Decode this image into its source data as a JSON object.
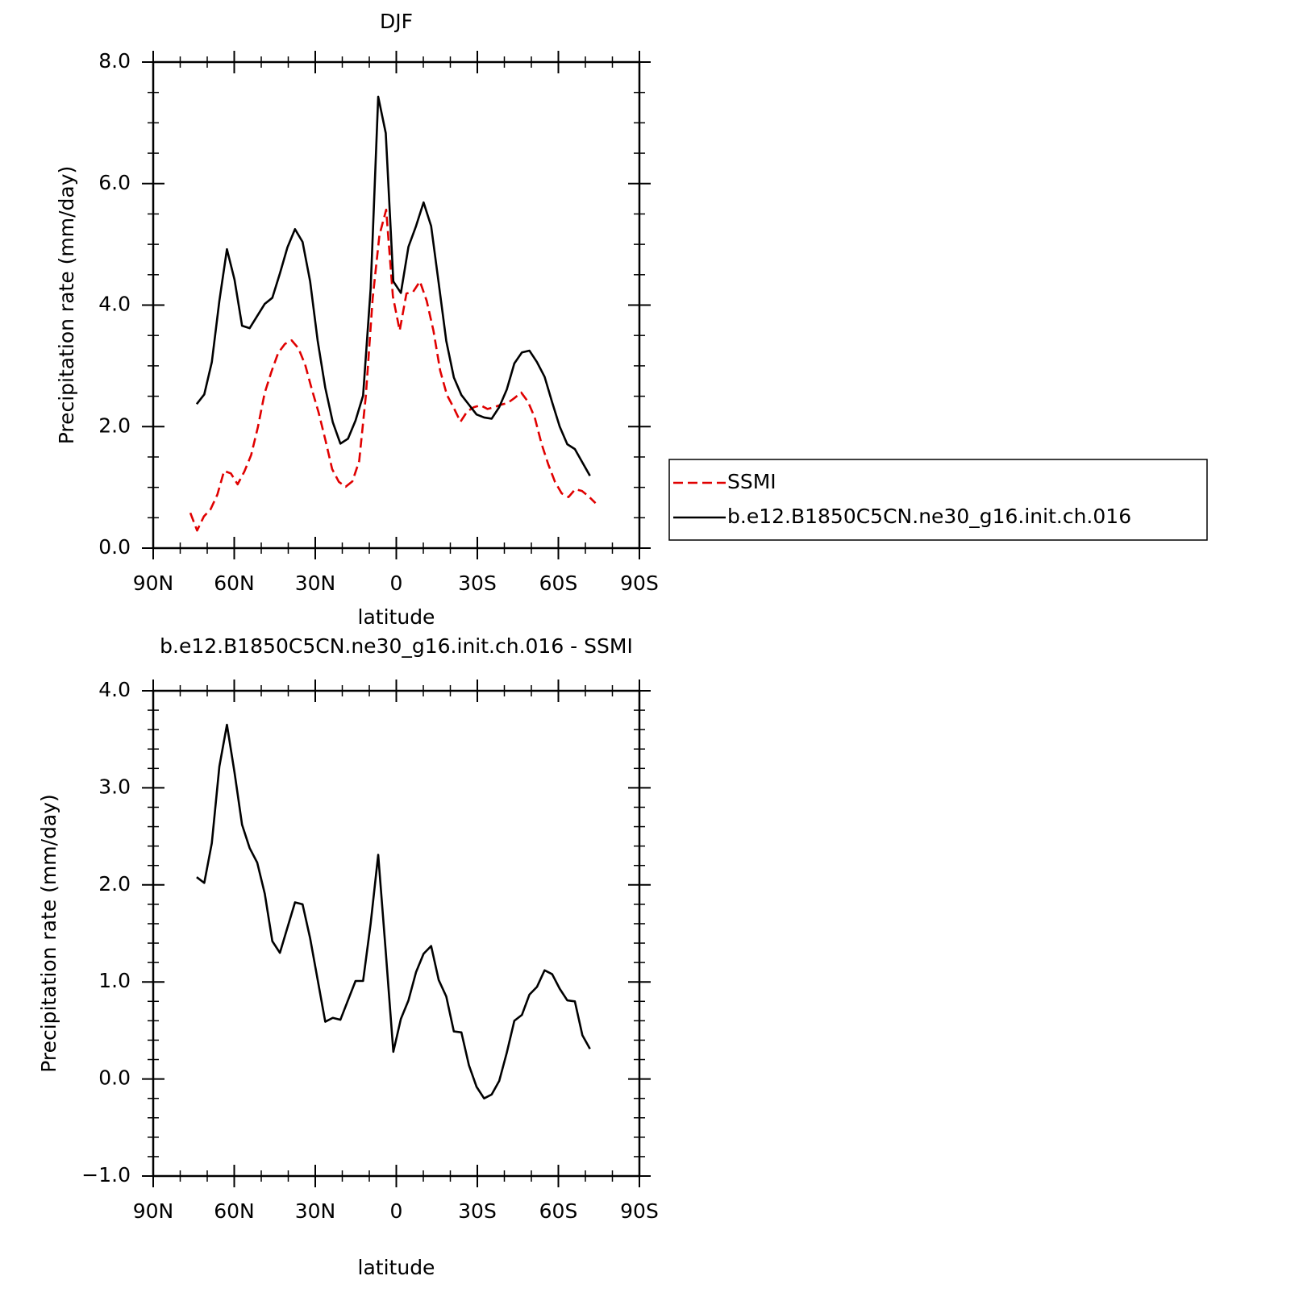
{
  "chart_data": [
    {
      "type": "line",
      "title": "DJF",
      "xlabel": "latitude",
      "ylabel": "Precipitation rate (mm/day)",
      "xlim": [
        90,
        -90
      ],
      "xticks": [
        {
          "value": 90,
          "label": "90N"
        },
        {
          "value": 60,
          "label": "60N"
        },
        {
          "value": 30,
          "label": "30N"
        },
        0,
        {
          "value": -30,
          "label": "30S"
        },
        {
          "value": -60,
          "label": "60S"
        },
        {
          "value": -90,
          "label": "90S"
        }
      ],
      "xminorticks": [
        80,
        70,
        50,
        40,
        20,
        10,
        -10,
        -20,
        -40,
        -50,
        -70,
        -80
      ],
      "ylim": [
        0,
        8
      ],
      "yticks": [
        {
          "value": 0,
          "label": "0.0"
        },
        {
          "value": 2,
          "label": "2.0"
        },
        {
          "value": 4,
          "label": "4.0"
        },
        {
          "value": 6,
          "label": "6.0"
        },
        {
          "value": 8,
          "label": "8.0"
        }
      ],
      "yminorticks": [
        0.5,
        1,
        1.5,
        2.5,
        3,
        3.5,
        4.5,
        5,
        5.5,
        6.5,
        7,
        7.5
      ],
      "legend": "right",
      "series": [
        {
          "name": "SSMI",
          "color": "#e00000",
          "line_style": "dashed",
          "x": [
            76.25,
            73.75,
            71.25,
            68.75,
            66.25,
            63.75,
            61.25,
            58.75,
            56.25,
            53.75,
            51.25,
            48.75,
            46.25,
            43.75,
            41.25,
            38.75,
            36.25,
            33.75,
            31.25,
            28.75,
            26.25,
            23.75,
            21.25,
            18.75,
            16.25,
            13.75,
            11.25,
            8.75,
            6.25,
            3.75,
            1.25,
            -1.25,
            -3.75,
            -6.25,
            -8.75,
            -11.25,
            -13.75,
            -16.25,
            -18.75,
            -21.25,
            -23.75,
            -26.25,
            -28.75,
            -31.25,
            -33.75,
            -36.25,
            -38.75,
            -41.25,
            -43.75,
            -46.25,
            -48.75,
            -51.25,
            -53.75,
            -56.25,
            -58.75,
            -61.25,
            -63.75,
            -66.25,
            -68.75,
            -71.25,
            -73.75
          ],
          "values": [
            0.58,
            0.29,
            0.52,
            0.64,
            0.88,
            1.27,
            1.23,
            1.05,
            1.26,
            1.53,
            1.99,
            2.55,
            2.9,
            3.21,
            3.36,
            3.42,
            3.29,
            3.02,
            2.61,
            2.23,
            1.78,
            1.3,
            1.09,
            1.01,
            1.1,
            1.43,
            2.52,
            4.11,
            5.15,
            5.57,
            4.14,
            3.58,
            4.19,
            4.22,
            4.39,
            4.07,
            3.58,
            2.92,
            2.52,
            2.31,
            2.08,
            2.25,
            2.32,
            2.35,
            2.29,
            2.32,
            2.36,
            2.39,
            2.47,
            2.56,
            2.41,
            2.15,
            1.72,
            1.38,
            1.09,
            0.9,
            0.84,
            0.97,
            0.94,
            0.85,
            0.74
          ]
        },
        {
          "name": "b.e12.B1850C5CN.ne30_g16.init.ch.016",
          "color": "#000000",
          "line_style": "solid",
          "x": [
            73.9,
            71.1,
            68.3,
            65.5,
            62.7,
            59.9,
            57.1,
            54.3,
            51.5,
            48.7,
            45.9,
            43.1,
            40.3,
            37.5,
            34.7,
            31.9,
            29.1,
            26.3,
            23.5,
            20.7,
            17.9,
            15.1,
            12.3,
            9.5,
            6.7,
            3.9,
            1.1,
            -1.7,
            -4.5,
            -7.3,
            -10.1,
            -12.9,
            -15.7,
            -18.5,
            -21.3,
            -24.1,
            -26.9,
            -29.7,
            -32.5,
            -35.3,
            -38.1,
            -40.9,
            -43.7,
            -46.5,
            -49.3,
            -52.1,
            -54.9,
            -57.7,
            -60.5,
            -63.3,
            -66.1,
            -68.9,
            -71.7
          ],
          "values": [
            2.37,
            2.53,
            3.06,
            4.07,
            4.92,
            4.42,
            3.66,
            3.62,
            3.82,
            4.02,
            4.12,
            4.52,
            4.95,
            5.25,
            5.04,
            4.39,
            3.41,
            2.64,
            2.07,
            1.72,
            1.8,
            2.1,
            2.51,
            4.27,
            7.43,
            6.83,
            4.39,
            4.2,
            4.96,
            5.3,
            5.69,
            5.3,
            4.36,
            3.41,
            2.81,
            2.52,
            2.36,
            2.2,
            2.15,
            2.13,
            2.32,
            2.61,
            3.04,
            3.22,
            3.25,
            3.06,
            2.82,
            2.4,
            2.0,
            1.71,
            1.63,
            1.41,
            1.19
          ]
        }
      ]
    },
    {
      "type": "line",
      "title": "b.e12.B1850C5CN.ne30_g16.init.ch.016 - SSMI",
      "xlabel": "latitude",
      "ylabel": "Precipitation rate (mm/day)",
      "xlim": [
        90,
        -90
      ],
      "xticks": [
        {
          "value": 90,
          "label": "90N"
        },
        {
          "value": 60,
          "label": "60N"
        },
        {
          "value": 30,
          "label": "30N"
        },
        0,
        {
          "value": -30,
          "label": "30S"
        },
        {
          "value": -60,
          "label": "60S"
        },
        {
          "value": -90,
          "label": "90S"
        }
      ],
      "xminorticks": [
        80,
        70,
        50,
        40,
        20,
        10,
        -10,
        -20,
        -40,
        -50,
        -70,
        -80
      ],
      "ylim": [
        -1,
        4
      ],
      "yticks": [
        {
          "value": -1,
          "label": "−1.0"
        },
        {
          "value": 0,
          "label": "0.0"
        },
        {
          "value": 1,
          "label": "1.0"
        },
        {
          "value": 2,
          "label": "2.0"
        },
        {
          "value": 3,
          "label": "3.0"
        },
        {
          "value": 4,
          "label": "4.0"
        }
      ],
      "yminorticks": [
        -0.8,
        -0.6,
        -0.4,
        -0.2,
        0.2,
        0.4,
        0.6,
        0.8,
        1.2,
        1.4,
        1.6,
        1.8,
        2.2,
        2.4,
        2.6,
        2.8,
        3.2,
        3.4,
        3.6,
        3.8
      ],
      "color": "#000000",
      "x": [
        73.9,
        71.1,
        68.3,
        65.5,
        62.7,
        59.9,
        57.1,
        54.3,
        51.5,
        48.7,
        45.9,
        43.1,
        40.3,
        37.5,
        34.7,
        31.9,
        29.1,
        26.3,
        23.5,
        20.7,
        17.9,
        15.1,
        12.3,
        9.5,
        6.7,
        3.9,
        1.1,
        -1.7,
        -4.5,
        -7.3,
        -10.1,
        -12.9,
        -15.7,
        -18.5,
        -21.3,
        -24.1,
        -26.9,
        -29.7,
        -32.5,
        -35.3,
        -38.1,
        -40.9,
        -43.7,
        -46.5,
        -49.3,
        -52.1,
        -54.9,
        -57.7,
        -60.5,
        -63.3,
        -66.1,
        -68.9,
        -71.7
      ],
      "values": [
        2.08,
        2.02,
        2.43,
        3.22,
        3.65,
        3.16,
        2.62,
        2.38,
        2.23,
        1.91,
        1.42,
        1.3,
        1.56,
        1.82,
        1.8,
        1.45,
        1.02,
        0.59,
        0.63,
        0.61,
        0.81,
        1.01,
        1.01,
        1.6,
        2.31,
        1.31,
        0.28,
        0.62,
        0.81,
        1.1,
        1.29,
        1.37,
        1.02,
        0.85,
        0.49,
        0.48,
        0.14,
        -0.08,
        -0.2,
        -0.16,
        -0.02,
        0.27,
        0.6,
        0.66,
        0.87,
        0.95,
        1.12,
        1.08,
        0.93,
        0.81,
        0.8,
        0.45,
        0.31
      ]
    }
  ]
}
